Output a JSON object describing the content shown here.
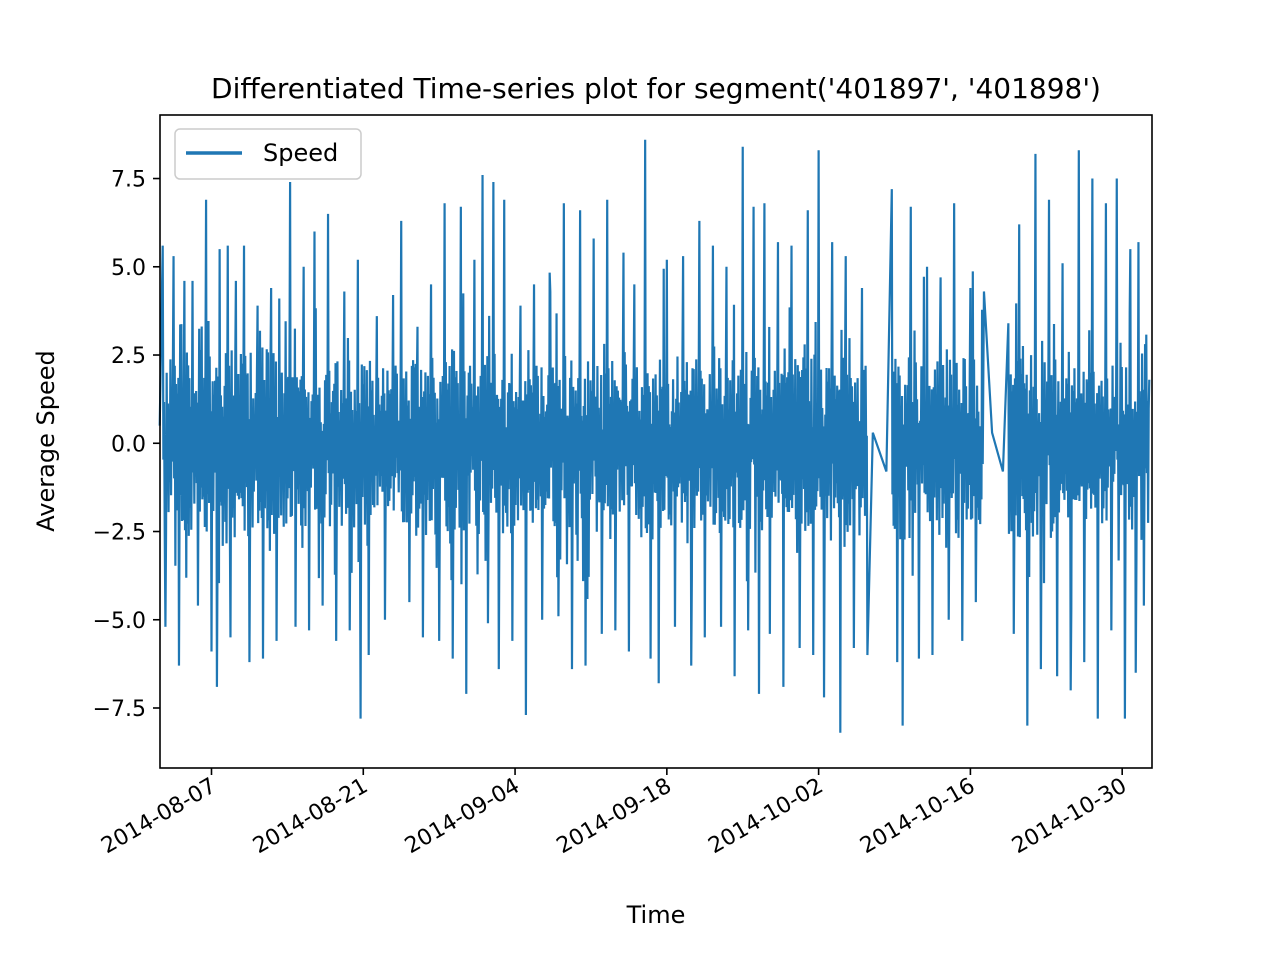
{
  "chart_data": {
    "type": "line",
    "title": "Differentiated Time-series plot for segment('401897', '401898')",
    "xlabel": "Time",
    "ylabel": "Average Speed",
    "x_type": "date",
    "xlim": [
      "2014-08-02T06:00",
      "2014-11-01T18:00"
    ],
    "ylim": [
      -9.2,
      9.3
    ],
    "x_ticks": [
      "2014-08-07",
      "2014-08-21",
      "2014-09-04",
      "2014-09-18",
      "2014-10-02",
      "2014-10-16",
      "2014-10-30"
    ],
    "y_ticks": [
      -7.5,
      -5.0,
      -2.5,
      0.0,
      2.5,
      5.0,
      7.5
    ],
    "y_tick_labels": [
      "−7.5",
      "−5.0",
      "−2.5",
      "0.0",
      "2.5",
      "5.0",
      "7.5"
    ],
    "grid": false,
    "legend": {
      "position": "upper-left",
      "entries": [
        "Speed"
      ]
    },
    "series": [
      {
        "name": "Speed",
        "color": "#1f77b4",
        "gaps": [
          [
            "2014-10-07T00:00",
            "2014-10-08T06:00"
          ],
          [
            "2014-10-18T00:00",
            "2014-10-19T00:00"
          ]
        ],
        "extremes": [
          [
            "2014-08-02T12:00",
            5.6
          ],
          [
            "2014-08-02T18:00",
            -5.2
          ],
          [
            "2014-08-03T12:00",
            5.3
          ],
          [
            "2014-08-04T00:00",
            -6.3
          ],
          [
            "2014-08-04T12:00",
            4.6
          ],
          [
            "2014-08-05T06:00",
            4.6
          ],
          [
            "2014-08-05T18:00",
            -4.6
          ],
          [
            "2014-08-06T12:00",
            6.9
          ],
          [
            "2014-08-07T00:00",
            -5.9
          ],
          [
            "2014-08-07T12:00",
            -6.9
          ],
          [
            "2014-08-07T18:00",
            5.5
          ],
          [
            "2014-08-08T12:00",
            5.6
          ],
          [
            "2014-08-08T18:00",
            -5.5
          ],
          [
            "2014-08-09T06:00",
            4.6
          ],
          [
            "2014-08-10T00:00",
            5.6
          ],
          [
            "2014-08-10T12:00",
            -6.2
          ],
          [
            "2014-08-11T06:00",
            3.9
          ],
          [
            "2014-08-11T18:00",
            -6.1
          ],
          [
            "2014-08-12T12:00",
            4.4
          ],
          [
            "2014-08-13T00:00",
            -5.6
          ],
          [
            "2014-08-13T06:00",
            4.1
          ],
          [
            "2014-08-14T06:00",
            7.4
          ],
          [
            "2014-08-14T18:00",
            -5.2
          ],
          [
            "2014-08-15T12:00",
            5.0
          ],
          [
            "2014-08-16T00:00",
            -5.3
          ],
          [
            "2014-08-16T12:00",
            6.0
          ],
          [
            "2014-08-17T06:00",
            -4.6
          ],
          [
            "2014-08-17T18:00",
            6.5
          ],
          [
            "2014-08-18T12:00",
            -5.6
          ],
          [
            "2014-08-19T06:00",
            4.3
          ],
          [
            "2014-08-19T18:00",
            -5.3
          ],
          [
            "2014-08-20T12:00",
            5.2
          ],
          [
            "2014-08-20T18:00",
            -7.8
          ],
          [
            "2014-08-21T12:00",
            -6.0
          ],
          [
            "2014-08-22T06:00",
            3.6
          ],
          [
            "2014-08-23T00:00",
            -5.0
          ],
          [
            "2014-08-23T18:00",
            4.2
          ],
          [
            "2014-08-24T12:00",
            6.3
          ],
          [
            "2014-08-25T06:00",
            -4.5
          ],
          [
            "2014-08-26T00:00",
            3.3
          ],
          [
            "2014-08-26T12:00",
            -5.5
          ],
          [
            "2014-08-27T06:00",
            4.5
          ],
          [
            "2014-08-28T00:00",
            -5.6
          ],
          [
            "2014-08-28T12:00",
            6.8
          ],
          [
            "2014-08-29T06:00",
            -6.1
          ],
          [
            "2014-08-30T00:00",
            6.7
          ],
          [
            "2014-08-30T12:00",
            -7.1
          ],
          [
            "2014-08-31T06:00",
            5.2
          ],
          [
            "2014-09-01T00:00",
            7.6
          ],
          [
            "2014-09-01T12:00",
            -5.1
          ],
          [
            "2014-09-02T00:00",
            7.4
          ],
          [
            "2014-09-02T12:00",
            -6.4
          ],
          [
            "2014-09-03T00:00",
            6.9
          ],
          [
            "2014-09-03T18:00",
            -5.6
          ],
          [
            "2014-09-04T12:00",
            3.9
          ],
          [
            "2014-09-05T00:00",
            -7.7
          ],
          [
            "2014-09-05T18:00",
            4.5
          ],
          [
            "2014-09-06T12:00",
            -5.0
          ],
          [
            "2014-09-07T06:00",
            4.3
          ],
          [
            "2014-09-08T00:00",
            -4.9
          ],
          [
            "2014-09-08T12:00",
            6.8
          ],
          [
            "2014-09-09T06:00",
            -6.4
          ],
          [
            "2014-09-10T00:00",
            6.6
          ],
          [
            "2014-09-10T12:00",
            -6.3
          ],
          [
            "2014-09-11T06:00",
            5.8
          ],
          [
            "2014-09-12T00:00",
            -5.4
          ],
          [
            "2014-09-12T12:00",
            6.9
          ],
          [
            "2014-09-13T06:00",
            -5.3
          ],
          [
            "2014-09-14T00:00",
            5.4
          ],
          [
            "2014-09-14T12:00",
            -5.9
          ],
          [
            "2014-09-15T00:00",
            4.5
          ],
          [
            "2014-09-16T00:00",
            8.6
          ],
          [
            "2014-09-16T12:00",
            -6.1
          ],
          [
            "2014-09-17T06:00",
            -6.8
          ],
          [
            "2014-09-18T00:00",
            5.2
          ],
          [
            "2014-09-18T18:00",
            -5.2
          ],
          [
            "2014-09-19T12:00",
            5.3
          ],
          [
            "2014-09-20T06:00",
            -6.3
          ],
          [
            "2014-09-21T00:00",
            6.3
          ],
          [
            "2014-09-21T12:00",
            -5.5
          ],
          [
            "2014-09-22T06:00",
            5.6
          ],
          [
            "2014-09-23T00:00",
            -5.2
          ],
          [
            "2014-09-23T12:00",
            5.0
          ],
          [
            "2014-09-24T06:00",
            -6.6
          ],
          [
            "2014-09-25T00:00",
            8.4
          ],
          [
            "2014-09-25T12:00",
            -5.3
          ],
          [
            "2014-09-26T00:00",
            6.7
          ],
          [
            "2014-09-26T12:00",
            -7.1
          ],
          [
            "2014-09-27T00:00",
            6.8
          ],
          [
            "2014-09-27T12:00",
            -5.4
          ],
          [
            "2014-09-28T06:00",
            5.7
          ],
          [
            "2014-09-28T18:00",
            -6.9
          ],
          [
            "2014-09-29T12:00",
            5.6
          ],
          [
            "2014-09-30T06:00",
            -5.8
          ],
          [
            "2014-10-01T00:00",
            6.6
          ],
          [
            "2014-10-01T12:00",
            -6.0
          ],
          [
            "2014-10-02T00:00",
            8.3
          ],
          [
            "2014-10-02T12:00",
            -7.2
          ],
          [
            "2014-10-03T06:00",
            5.7
          ],
          [
            "2014-10-04T00:00",
            -8.2
          ],
          [
            "2014-10-04T12:00",
            5.3
          ],
          [
            "2014-10-05T06:00",
            -5.8
          ],
          [
            "2014-10-06T00:00",
            4.4
          ],
          [
            "2014-10-06T12:00",
            -6.0
          ],
          [
            "2014-10-08T18:00",
            7.2
          ],
          [
            "2014-10-09T06:00",
            -6.2
          ],
          [
            "2014-10-09T18:00",
            -8.0
          ],
          [
            "2014-10-10T12:00",
            6.7
          ],
          [
            "2014-10-11T06:00",
            -6.1
          ],
          [
            "2014-10-12T00:00",
            5.0
          ],
          [
            "2014-10-12T12:00",
            -6.0
          ],
          [
            "2014-10-13T06:00",
            4.7
          ],
          [
            "2014-10-14T00:00",
            -5.0
          ],
          [
            "2014-10-14T12:00",
            6.8
          ],
          [
            "2014-10-15T06:00",
            -5.6
          ],
          [
            "2014-10-16T00:00",
            4.4
          ],
          [
            "2014-10-16T12:00",
            -4.5
          ],
          [
            "2014-10-17T06:00",
            4.3
          ],
          [
            "2014-10-19T12:00",
            3.4
          ],
          [
            "2014-10-20T00:00",
            -5.4
          ],
          [
            "2014-10-20T12:00",
            6.2
          ],
          [
            "2014-10-21T06:00",
            -8.0
          ],
          [
            "2014-10-22T00:00",
            8.2
          ],
          [
            "2014-10-22T12:00",
            -6.4
          ],
          [
            "2014-10-23T06:00",
            6.9
          ],
          [
            "2014-10-24T00:00",
            -6.6
          ],
          [
            "2014-10-24T12:00",
            5.1
          ],
          [
            "2014-10-25T06:00",
            -7.0
          ],
          [
            "2014-10-26T00:00",
            8.3
          ],
          [
            "2014-10-26T12:00",
            -6.2
          ],
          [
            "2014-10-27T06:00",
            7.5
          ],
          [
            "2014-10-27T18:00",
            -7.8
          ],
          [
            "2014-10-28T12:00",
            6.8
          ],
          [
            "2014-10-29T00:00",
            -5.3
          ],
          [
            "2014-10-29T12:00",
            7.5
          ],
          [
            "2014-10-30T06:00",
            -7.8
          ],
          [
            "2014-10-30T18:00",
            5.5
          ],
          [
            "2014-10-31T06:00",
            -6.5
          ],
          [
            "2014-10-31T12:00",
            5.7
          ],
          [
            "2014-11-01T00:00",
            -4.6
          ],
          [
            "2014-11-01T12:00",
            1.8
          ]
        ]
      }
    ]
  }
}
